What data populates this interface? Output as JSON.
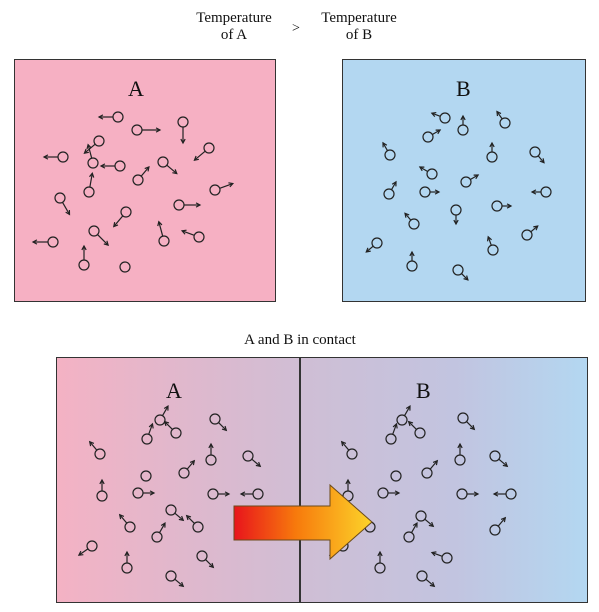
{
  "header": {
    "temperature_a": "Temperature\nof A",
    "comparison": ">",
    "temperature_b": "Temperature\nof B"
  },
  "box_a": {
    "letter": "A",
    "color": "#f6b0c3"
  },
  "box_b": {
    "letter": "B",
    "color": "#b3d7f1"
  },
  "contact": {
    "caption": "A and B in contact",
    "letter_a": "A",
    "letter_b": "B",
    "arrow_colors": [
      "#e8141c",
      "#f77a0c",
      "#fcd42a"
    ]
  },
  "molecule_icon": "molecule-with-velocity-arrow"
}
